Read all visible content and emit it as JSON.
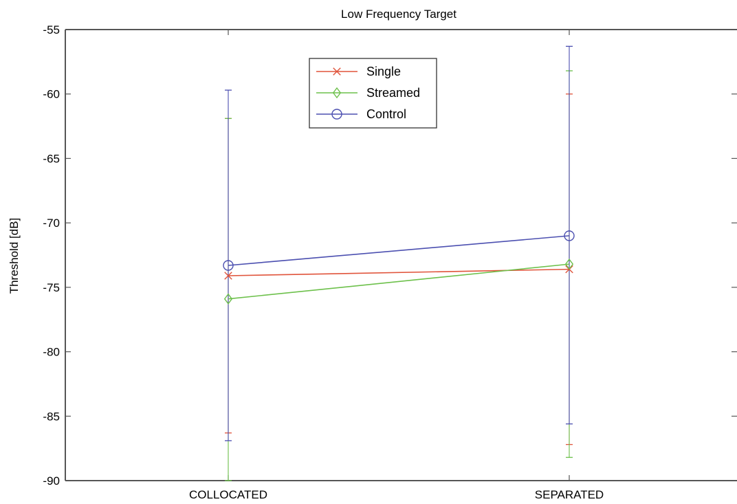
{
  "chart_data": {
    "type": "line",
    "title": "Low Frequency Target",
    "xlabel": "",
    "ylabel": "Threshold [dB]",
    "categories": [
      "COLLOCATED",
      "SEPARATED"
    ],
    "ylim": [
      -90,
      -55
    ],
    "yticks": [
      -55,
      -60,
      -65,
      -70,
      -75,
      -80,
      -85,
      -90
    ],
    "grid": false,
    "legend_position": "top-center",
    "series": [
      {
        "name": "Single",
        "color": "#e0533a",
        "marker": "x",
        "values": [
          -74.1,
          -73.6
        ],
        "err_low": [
          -86.3,
          -87.2
        ],
        "err_high": [
          -61.9,
          -60.0
        ]
      },
      {
        "name": "Streamed",
        "color": "#6cc04a",
        "marker": "diamond",
        "values": [
          -75.9,
          -73.2
        ],
        "err_low": [
          -90.0,
          -88.2
        ],
        "err_high": [
          -61.9,
          -58.2
        ]
      },
      {
        "name": "Control",
        "color": "#4b4fb0",
        "marker": "circle",
        "values": [
          -73.3,
          -71.0
        ],
        "err_low": [
          -86.9,
          -85.6
        ],
        "err_high": [
          -59.7,
          -56.3
        ]
      }
    ]
  }
}
